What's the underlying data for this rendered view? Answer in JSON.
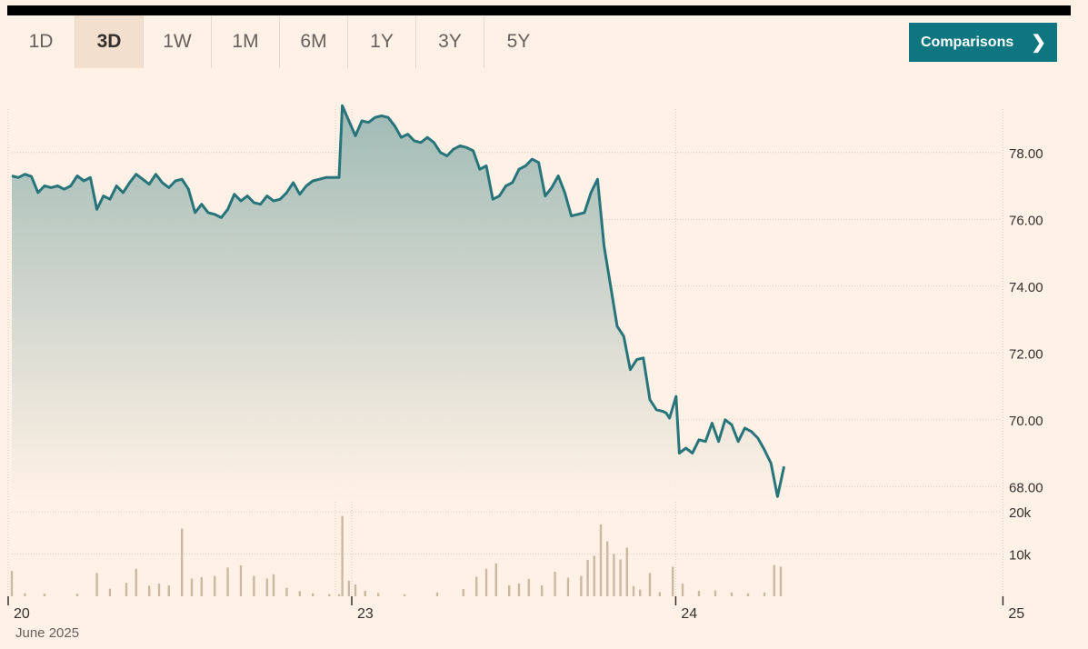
{
  "tabs": [
    {
      "label": "1D",
      "active": false
    },
    {
      "label": "3D",
      "active": true
    },
    {
      "label": "1W",
      "active": false
    },
    {
      "label": "1M",
      "active": false
    },
    {
      "label": "6M",
      "active": false
    },
    {
      "label": "1Y",
      "active": false
    },
    {
      "label": "3Y",
      "active": false
    },
    {
      "label": "5Y",
      "active": false
    }
  ],
  "comparisons_button": {
    "label": "Comparisons",
    "icon": "chevron-right-icon"
  },
  "colors": {
    "line": "#27757b",
    "fill_top": "#9fbab5",
    "volume": "#cbb8a3",
    "accent": "#0d7680"
  },
  "chart_data": {
    "type": "line",
    "x_ticks": [
      "20",
      "23",
      "24",
      "25"
    ],
    "x_sublabel": "June 2025",
    "y_ticks": [
      "78.00",
      "76.00",
      "74.00",
      "72.00",
      "70.00",
      "68.00"
    ],
    "ylim": [
      67.6,
      79.3
    ],
    "vol_ticks": [
      "20k",
      "10k"
    ],
    "vol_max": 20000,
    "grid": true,
    "sessions": [
      {
        "day": "20",
        "start": 0.0,
        "end": 1.0
      },
      {
        "day": "23",
        "start": 1.05,
        "end": 2.0
      },
      {
        "day": "24",
        "start": 2.0,
        "end": 2.31
      }
    ],
    "price_points": [
      [
        0.0,
        77.3
      ],
      [
        0.02,
        77.25
      ],
      [
        0.04,
        77.35
      ],
      [
        0.06,
        77.28
      ],
      [
        0.08,
        76.8
      ],
      [
        0.1,
        77.0
      ],
      [
        0.12,
        76.95
      ],
      [
        0.14,
        77.0
      ],
      [
        0.16,
        76.9
      ],
      [
        0.18,
        77.0
      ],
      [
        0.2,
        77.3
      ],
      [
        0.22,
        77.15
      ],
      [
        0.24,
        77.25
      ],
      [
        0.26,
        76.3
      ],
      [
        0.28,
        76.7
      ],
      [
        0.3,
        76.6
      ],
      [
        0.32,
        77.0
      ],
      [
        0.34,
        76.8
      ],
      [
        0.36,
        77.1
      ],
      [
        0.38,
        77.35
      ],
      [
        0.4,
        77.2
      ],
      [
        0.42,
        77.05
      ],
      [
        0.44,
        77.35
      ],
      [
        0.46,
        77.1
      ],
      [
        0.48,
        76.95
      ],
      [
        0.5,
        77.15
      ],
      [
        0.52,
        77.2
      ],
      [
        0.54,
        76.9
      ],
      [
        0.56,
        76.2
      ],
      [
        0.58,
        76.45
      ],
      [
        0.6,
        76.2
      ],
      [
        0.62,
        76.15
      ],
      [
        0.64,
        76.05
      ],
      [
        0.66,
        76.3
      ],
      [
        0.68,
        76.75
      ],
      [
        0.7,
        76.55
      ],
      [
        0.72,
        76.7
      ],
      [
        0.74,
        76.5
      ],
      [
        0.76,
        76.45
      ],
      [
        0.78,
        76.7
      ],
      [
        0.8,
        76.55
      ],
      [
        0.82,
        76.6
      ],
      [
        0.84,
        76.8
      ],
      [
        0.86,
        77.1
      ],
      [
        0.88,
        76.75
      ],
      [
        0.9,
        77.0
      ],
      [
        0.92,
        77.15
      ],
      [
        0.94,
        77.2
      ],
      [
        0.96,
        77.25
      ],
      [
        0.98,
        77.25
      ],
      [
        1.0,
        77.25
      ],
      [
        1.01,
        79.4
      ],
      [
        1.03,
        78.95
      ],
      [
        1.05,
        78.5
      ],
      [
        1.07,
        78.95
      ],
      [
        1.09,
        78.9
      ],
      [
        1.11,
        79.05
      ],
      [
        1.13,
        79.1
      ],
      [
        1.15,
        79.05
      ],
      [
        1.17,
        78.8
      ],
      [
        1.19,
        78.45
      ],
      [
        1.21,
        78.55
      ],
      [
        1.23,
        78.35
      ],
      [
        1.25,
        78.3
      ],
      [
        1.27,
        78.45
      ],
      [
        1.29,
        78.3
      ],
      [
        1.31,
        78.0
      ],
      [
        1.33,
        77.9
      ],
      [
        1.35,
        78.1
      ],
      [
        1.37,
        78.2
      ],
      [
        1.39,
        78.15
      ],
      [
        1.41,
        78.05
      ],
      [
        1.43,
        77.5
      ],
      [
        1.45,
        77.6
      ],
      [
        1.47,
        76.6
      ],
      [
        1.49,
        76.7
      ],
      [
        1.51,
        77.0
      ],
      [
        1.53,
        77.1
      ],
      [
        1.55,
        77.5
      ],
      [
        1.57,
        77.6
      ],
      [
        1.59,
        77.8
      ],
      [
        1.61,
        77.7
      ],
      [
        1.63,
        76.7
      ],
      [
        1.65,
        76.95
      ],
      [
        1.67,
        77.3
      ],
      [
        1.69,
        76.8
      ],
      [
        1.71,
        76.1
      ],
      [
        1.73,
        76.15
      ],
      [
        1.75,
        76.2
      ],
      [
        1.77,
        76.8
      ],
      [
        1.79,
        77.2
      ],
      [
        1.81,
        75.2
      ],
      [
        1.83,
        74.0
      ],
      [
        1.85,
        72.8
      ],
      [
        1.87,
        72.5
      ],
      [
        1.89,
        71.5
      ],
      [
        1.91,
        71.8
      ],
      [
        1.93,
        71.85
      ],
      [
        1.95,
        70.6
      ],
      [
        1.97,
        70.3
      ],
      [
        1.99,
        70.25
      ],
      [
        2.0,
        70.2
      ],
      [
        2.01,
        70.05
      ],
      [
        2.03,
        70.7
      ],
      [
        2.04,
        69.0
      ],
      [
        2.06,
        69.15
      ],
      [
        2.08,
        69.0
      ],
      [
        2.1,
        69.4
      ],
      [
        2.12,
        69.35
      ],
      [
        2.14,
        69.9
      ],
      [
        2.16,
        69.35
      ],
      [
        2.18,
        70.0
      ],
      [
        2.2,
        69.85
      ],
      [
        2.22,
        69.35
      ],
      [
        2.24,
        69.75
      ],
      [
        2.26,
        69.65
      ],
      [
        2.28,
        69.45
      ],
      [
        2.3,
        69.1
      ],
      [
        2.32,
        68.7
      ],
      [
        2.34,
        67.7
      ],
      [
        2.36,
        68.6
      ]
    ],
    "volume_points": [
      [
        0.0,
        6000
      ],
      [
        0.04,
        700
      ],
      [
        0.1,
        600
      ],
      [
        0.2,
        600
      ],
      [
        0.26,
        5500
      ],
      [
        0.3,
        1800
      ],
      [
        0.35,
        3200
      ],
      [
        0.38,
        6500
      ],
      [
        0.42,
        2500
      ],
      [
        0.45,
        3000
      ],
      [
        0.48,
        2600
      ],
      [
        0.52,
        16000
      ],
      [
        0.55,
        4200
      ],
      [
        0.58,
        4500
      ],
      [
        0.62,
        4800
      ],
      [
        0.66,
        6800
      ],
      [
        0.7,
        7300
      ],
      [
        0.74,
        4800
      ],
      [
        0.78,
        4200
      ],
      [
        0.8,
        5200
      ],
      [
        0.84,
        2000
      ],
      [
        0.88,
        1200
      ],
      [
        0.92,
        700
      ],
      [
        0.97,
        500
      ],
      [
        1.0,
        500
      ],
      [
        1.01,
        19000
      ],
      [
        1.03,
        3700
      ],
      [
        1.05,
        2800
      ],
      [
        1.08,
        1300
      ],
      [
        1.12,
        800
      ],
      [
        1.2,
        500
      ],
      [
        1.3,
        900
      ],
      [
        1.38,
        1700
      ],
      [
        1.42,
        4600
      ],
      [
        1.45,
        6500
      ],
      [
        1.48,
        7800
      ],
      [
        1.52,
        2600
      ],
      [
        1.55,
        3000
      ],
      [
        1.58,
        4100
      ],
      [
        1.62,
        2600
      ],
      [
        1.66,
        5800
      ],
      [
        1.7,
        4400
      ],
      [
        1.74,
        4800
      ],
      [
        1.76,
        8600
      ],
      [
        1.78,
        9600
      ],
      [
        1.8,
        17000
      ],
      [
        1.82,
        13000
      ],
      [
        1.84,
        10000
      ],
      [
        1.86,
        8700
      ],
      [
        1.88,
        11500
      ],
      [
        1.9,
        2400
      ],
      [
        1.92,
        1600
      ],
      [
        1.95,
        5500
      ],
      [
        1.98,
        1000
      ],
      [
        2.02,
        7000
      ],
      [
        2.05,
        3000
      ],
      [
        2.1,
        1300
      ],
      [
        2.15,
        1400
      ],
      [
        2.2,
        900
      ],
      [
        2.25,
        700
      ],
      [
        2.3,
        900
      ],
      [
        2.33,
        7400
      ],
      [
        2.35,
        7000
      ]
    ]
  }
}
